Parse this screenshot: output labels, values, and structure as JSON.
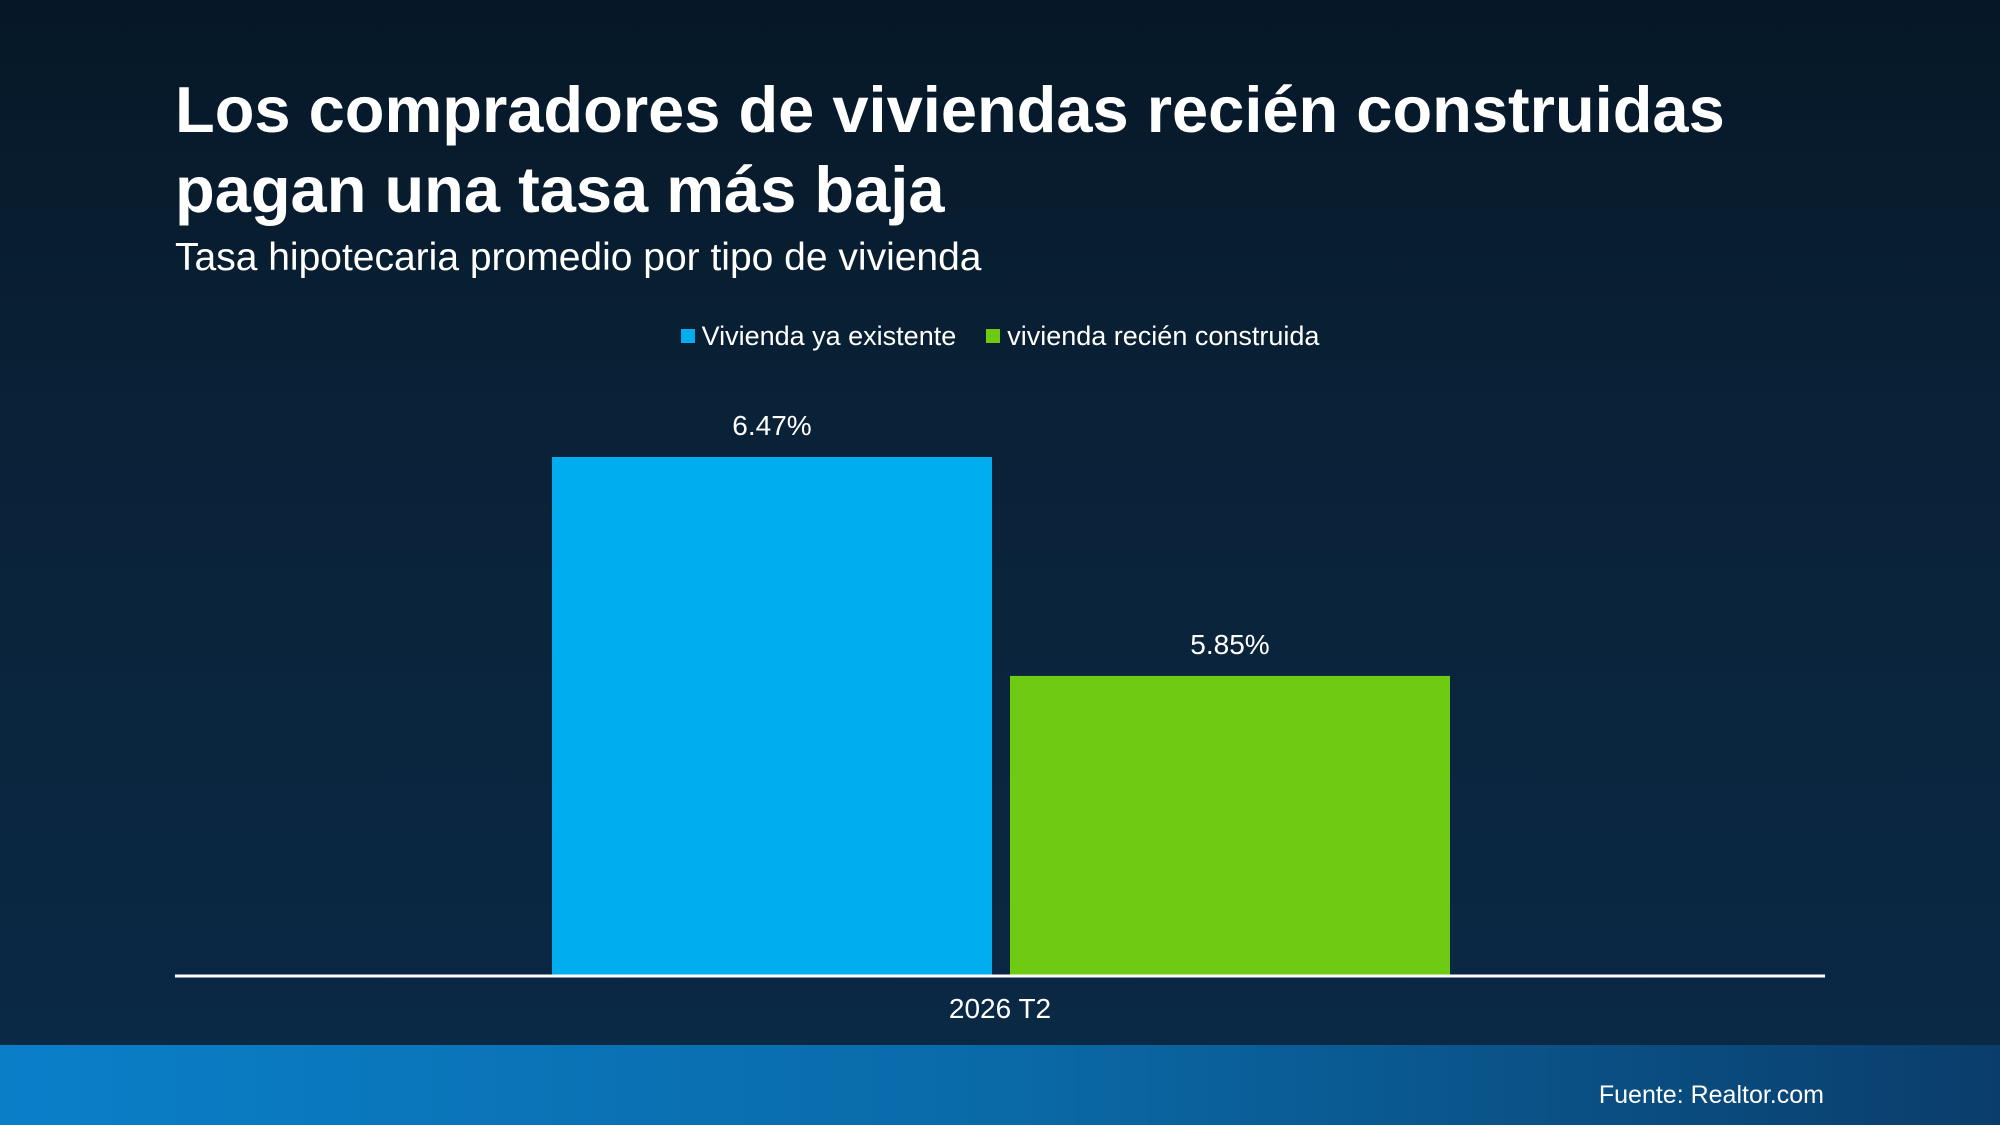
{
  "chart_data": {
    "type": "bar",
    "title": "Los compradores de viviendas recién construidas pagan una tasa más baja",
    "subtitle": "Tasa hipotecaria promedio por tipo de vivienda",
    "categories": [
      "2026 T2"
    ],
    "series": [
      {
        "name": "Vivienda ya existente",
        "values": [
          6.47
        ],
        "label": "6.47%",
        "color": "#00aeef"
      },
      {
        "name": "vivienda recién construida",
        "values": [
          5.85
        ],
        "label": "5.85%",
        "color": "#6fca14"
      }
    ],
    "ylim": [
      5.0,
      6.6
    ],
    "grid": false,
    "legend_position": "top-center",
    "xlabel": "",
    "ylabel": ""
  },
  "source": "Fuente: Realtor.com",
  "colors": {
    "axis": "#ffffff",
    "footer_start": "#0a7fc9",
    "footer_end": "#0a3d6b"
  }
}
